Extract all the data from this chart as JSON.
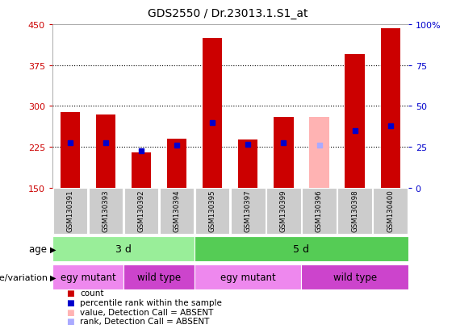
{
  "title": "GDS2550 / Dr.23013.1.S1_at",
  "samples": [
    "GSM130391",
    "GSM130393",
    "GSM130392",
    "GSM130394",
    "GSM130395",
    "GSM130397",
    "GSM130399",
    "GSM130396",
    "GSM130398",
    "GSM130400"
  ],
  "count_values": [
    289,
    284,
    215,
    240,
    425,
    238,
    280,
    280,
    395,
    443
  ],
  "percentile_values": [
    233,
    232,
    218,
    228,
    270,
    230,
    232,
    228,
    255,
    263
  ],
  "absent_flags": [
    false,
    false,
    false,
    false,
    false,
    false,
    false,
    true,
    false,
    false
  ],
  "y_min": 150,
  "y_max": 450,
  "y_ticks": [
    150,
    225,
    300,
    375,
    450
  ],
  "right_y_ticks_labels": [
    "0",
    "25",
    "50",
    "75",
    "100%"
  ],
  "bar_color": "#cc0000",
  "absent_bar_color": "#ffb3b3",
  "blue_marker_color": "#0000cc",
  "absent_rank_marker_color": "#aaaaff",
  "bar_width": 0.55,
  "age_groups": [
    {
      "label": "3 d",
      "start": 0,
      "end": 4,
      "color": "#99ee99"
    },
    {
      "label": "5 d",
      "start": 4,
      "end": 10,
      "color": "#55cc55"
    }
  ],
  "genotype_groups": [
    {
      "label": "egy mutant",
      "start": 0,
      "end": 2,
      "color": "#ee88ee"
    },
    {
      "label": "wild type",
      "start": 2,
      "end": 4,
      "color": "#cc44cc"
    },
    {
      "label": "egy mutant",
      "start": 4,
      "end": 7,
      "color": "#ee88ee"
    },
    {
      "label": "wild type",
      "start": 7,
      "end": 10,
      "color": "#cc44cc"
    }
  ],
  "legend_items": [
    {
      "label": "count",
      "color": "#cc0000"
    },
    {
      "label": "percentile rank within the sample",
      "color": "#0000cc"
    },
    {
      "label": "value, Detection Call = ABSENT",
      "color": "#ffb3b3"
    },
    {
      "label": "rank, Detection Call = ABSENT",
      "color": "#aaaaff"
    }
  ],
  "xlabel_age": "age",
  "xlabel_genotype": "genotype/variation"
}
